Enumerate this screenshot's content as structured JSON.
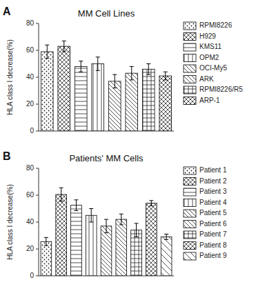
{
  "chart_data": [
    {
      "type": "bar",
      "title": "MM Cell Lines",
      "ylabel": "HLA class I decrease(%)",
      "annotations": [
        "A"
      ],
      "categories": [
        "RPMI8226",
        "H929",
        "KMS11",
        "OPM2",
        "OCI-My5",
        "ARK",
        "RPMI8226/R5",
        "ARP-1"
      ],
      "values": [
        59,
        63,
        48,
        50,
        37,
        43,
        46,
        41
      ],
      "errors": [
        5,
        4,
        4,
        5,
        5,
        5,
        4,
        3
      ],
      "color": "white",
      "ylim": [
        0,
        80
      ],
      "yticks": [
        0,
        20,
        40,
        60,
        80
      ],
      "grid": false,
      "legend": "right",
      "tick_labels": "y"
    },
    {
      "type": "bar",
      "title": "Patients' MM Cells",
      "ylabel": "HLA class I decrease(%)",
      "annotations": [
        "B"
      ],
      "categories": [
        "Patient 1",
        "Patient 2",
        "Patient 3",
        "Patient 4",
        "Patient 5",
        "Patient 6",
        "Patient 7",
        "Patient 8",
        "Patient 9"
      ],
      "values": [
        25.5,
        60.5,
        52.5,
        45,
        37,
        42,
        34,
        54,
        29
      ],
      "errors": [
        3,
        5,
        4,
        5,
        5,
        4,
        5,
        2,
        2
      ],
      "color": "white",
      "ylim": [
        0,
        80
      ],
      "yticks": [
        0,
        20,
        40,
        60,
        80
      ],
      "grid": false,
      "legend": "right",
      "tick_labels": "y"
    }
  ]
}
